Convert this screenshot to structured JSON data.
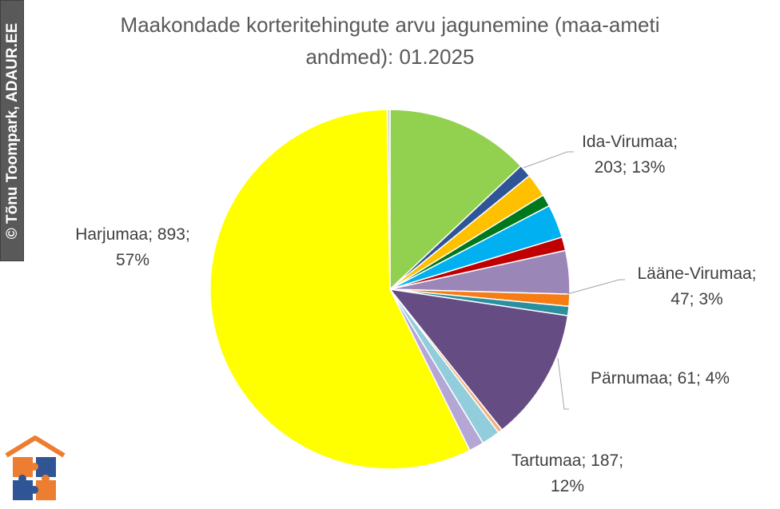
{
  "chart_data": {
    "type": "pie",
    "title": "Maakondade korteritehingute arvu jagunemine (maa-ameti andmed): 01.2025",
    "title_lines": [
      "Maakondade korteritehingute arvu jagunemine (maa-ameti",
      "andmed): 01.2025"
    ],
    "start_angle_deg": 0,
    "direction": "clockwise",
    "slices": [
      {
        "name": "Ida-Virumaa",
        "value": 203,
        "percent": "13%",
        "color": "#92d050",
        "label": [
          "Ida-Virumaa;",
          "203; 13%"
        ]
      },
      {
        "name": "",
        "value": 18,
        "color": "#2f5597"
      },
      {
        "name": "",
        "value": 33,
        "color": "#ffc000"
      },
      {
        "name": "",
        "value": 17,
        "color": "#00781e"
      },
      {
        "name": "Lääne-Virumaa",
        "value": 47,
        "percent": "3%",
        "color": "#00b0f0",
        "label": [
          "Lääne-Virumaa;",
          "47; 3%"
        ]
      },
      {
        "name": "",
        "value": 19,
        "color": "#c00000"
      },
      {
        "name": "Pärnumaa",
        "value": 61,
        "percent": "4%",
        "color": "#9b86b8",
        "label": [
          "Pärnumaa; 61; 4%"
        ]
      },
      {
        "name": "",
        "value": 17,
        "color": "#f57d14"
      },
      {
        "name": "",
        "value": 13,
        "color": "#2a8fa0"
      },
      {
        "name": "Tartumaa",
        "value": 187,
        "percent": "12%",
        "color": "#654d83",
        "label": [
          "Tartumaa; 187;",
          "12%"
        ]
      },
      {
        "name": "",
        "value": 6,
        "color": "#f4b183"
      },
      {
        "name": "",
        "value": 26,
        "color": "#92cddc"
      },
      {
        "name": "",
        "value": 21,
        "color": "#b4a7d6"
      },
      {
        "name": "Harjumaa",
        "value": 893,
        "percent": "57%",
        "color": "#ffff00",
        "label": [
          "Harjumaa; 893;",
          "57%"
        ]
      },
      {
        "name": "",
        "value": 4,
        "color": "#d9d9d9"
      }
    ]
  },
  "watermark": {
    "text": "© Tõnu Toompark, ADAUR.EE"
  },
  "logo": {
    "icon": "house-puzzle-logo-icon",
    "colors": [
      "#ed7d31",
      "#2f5597"
    ]
  }
}
